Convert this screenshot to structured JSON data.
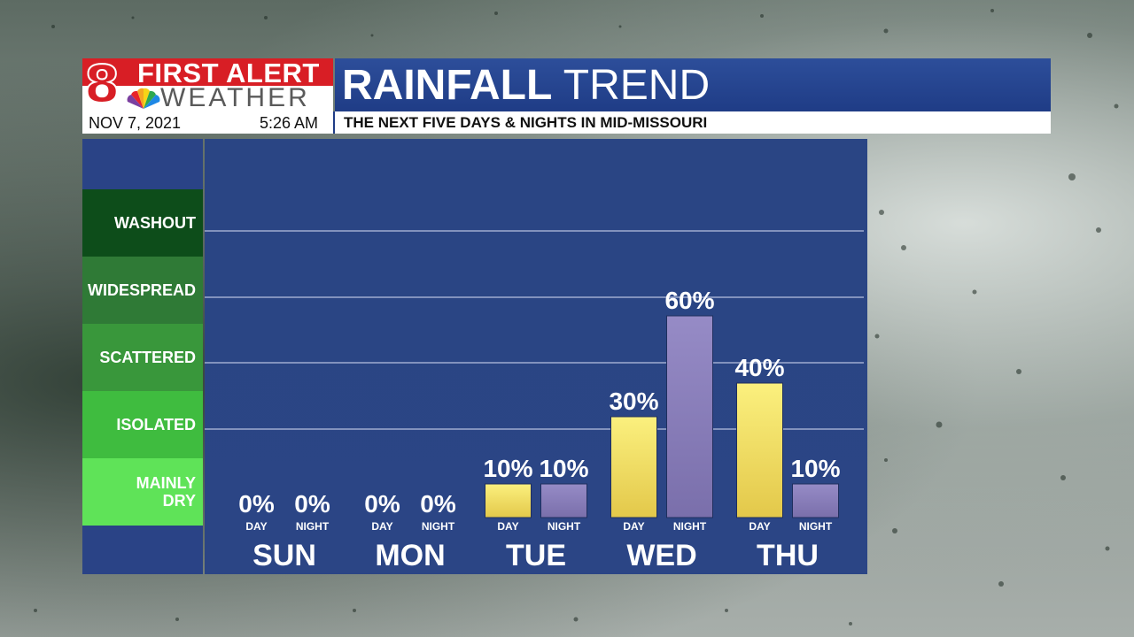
{
  "header": {
    "logo_top": "FIRST ALERT",
    "logo_bottom": "WEATHER",
    "logo_number": "8",
    "title_bold": "RAINFALL",
    "title_rest": "TREND",
    "date": "NOV 7, 2021",
    "time": "5:26 AM",
    "subtitle": "THE NEXT FIVE DAYS & NIGHTS IN MID-MISSOURI"
  },
  "legend": {
    "levels": [
      {
        "label": "WASHOUT",
        "color": "#0d4d1a"
      },
      {
        "label": "WIDESPREAD",
        "color": "#2f7a36"
      },
      {
        "label": "SCATTERED",
        "color": "#39973b"
      },
      {
        "label": "ISOLATED",
        "color": "#3fbc3f"
      },
      {
        "label": "MAINLY DRY",
        "color": "#5fe358"
      }
    ]
  },
  "colors": {
    "day_bar": "#f7e36b",
    "night_bar": "#8a7fb8",
    "chart_bg": "#2a4585",
    "grid": "#8292bd"
  },
  "chart_data": {
    "type": "bar",
    "categories": [
      "SUN",
      "MON",
      "TUE",
      "WED",
      "THU"
    ],
    "series": [
      {
        "name": "DAY",
        "values": [
          0,
          0,
          10,
          30,
          40
        ]
      },
      {
        "name": "NIGHT",
        "values": [
          0,
          0,
          10,
          60,
          10
        ]
      }
    ],
    "value_labels": {
      "DAY": [
        "0%",
        "0%",
        "10%",
        "30%",
        "40%"
      ],
      "NIGHT": [
        "0%",
        "0%",
        "10%",
        "60%",
        "10%"
      ]
    },
    "series_labels": [
      "DAY",
      "NIGHT"
    ],
    "ylim": [
      0,
      100
    ],
    "grid": true
  }
}
